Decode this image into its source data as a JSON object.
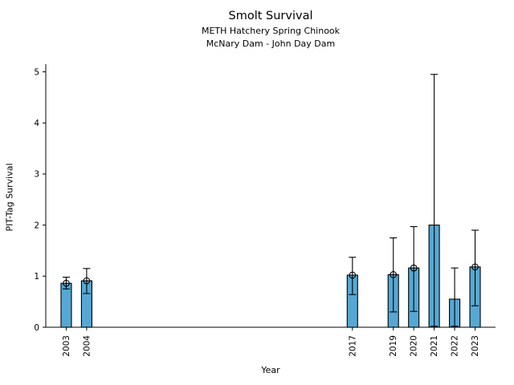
{
  "header": {
    "title": "Smolt Survival",
    "subtitle_line1": "METH Hatchery Spring Chinook",
    "subtitle_line2": "McNary Dam - John Day Dam"
  },
  "chart_data": {
    "type": "bar",
    "title": "Smolt Survival",
    "subtitle": [
      "METH Hatchery Spring Chinook",
      "McNary Dam - John Day Dam"
    ],
    "xlabel": "Year",
    "ylabel": "PIT-Tag Survival",
    "xlim": [
      2002,
      2024
    ],
    "ylim": [
      0,
      5.15
    ],
    "yticks": [
      0,
      1,
      2,
      3,
      4,
      5
    ],
    "grid": false,
    "legend": "none",
    "bar_color": "#56a8d4",
    "bar_edge_color": "#000000",
    "error_bar_color": "#000000",
    "points": [
      {
        "year": 2003,
        "value": 0.86,
        "ci_low": 0.75,
        "ci_high": 0.98,
        "marker": true
      },
      {
        "year": 2004,
        "value": 0.91,
        "ci_low": 0.66,
        "ci_high": 1.15,
        "marker": true
      },
      {
        "year": 2017,
        "value": 1.02,
        "ci_low": 0.64,
        "ci_high": 1.37,
        "marker": true
      },
      {
        "year": 2019,
        "value": 1.03,
        "ci_low": 0.3,
        "ci_high": 1.75,
        "marker": true
      },
      {
        "year": 2020,
        "value": 1.16,
        "ci_low": 0.31,
        "ci_high": 1.97,
        "marker": true
      },
      {
        "year": 2021,
        "value": 2.0,
        "ci_low": 0.02,
        "ci_high": 4.95,
        "marker": false
      },
      {
        "year": 2022,
        "value": 0.55,
        "ci_low": 0.02,
        "ci_high": 1.16,
        "marker": false
      },
      {
        "year": 2023,
        "value": 1.18,
        "ci_low": 0.42,
        "ci_high": 1.9,
        "marker": true
      }
    ]
  }
}
